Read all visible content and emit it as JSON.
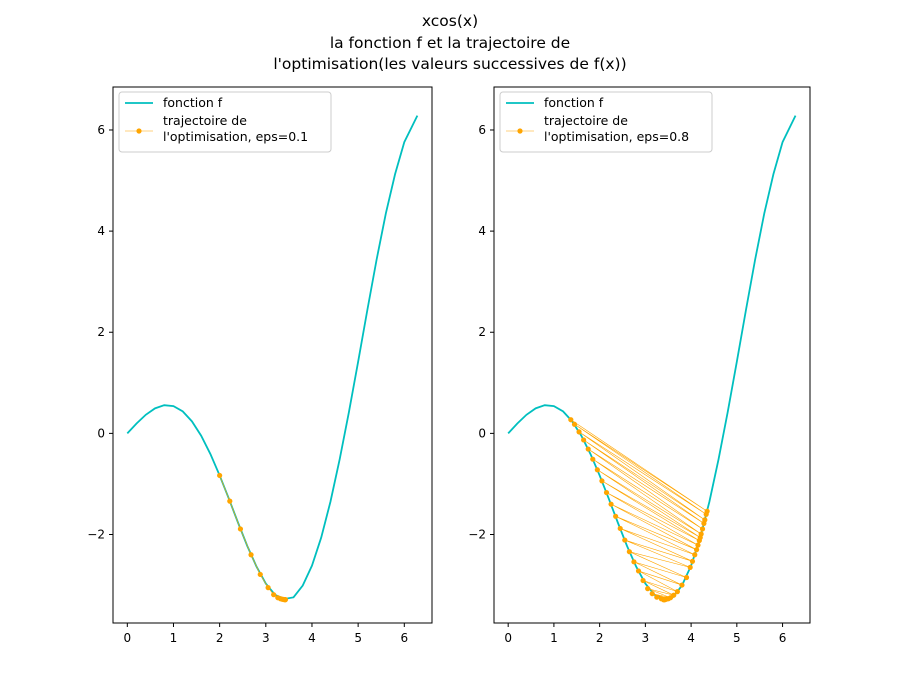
{
  "figure": {
    "title_lines": [
      "xcos(x)",
      "la fonction f et la trajectoire de",
      "l'optimisation(les valeurs successives de f(x))"
    ]
  },
  "colors": {
    "function": "#00bfbf",
    "trajectory": "#ffa500"
  },
  "chart_data": [
    {
      "type": "line",
      "title": "",
      "xlabel": "",
      "ylabel": "",
      "xlim": [
        -0.31,
        6.6
      ],
      "ylim": [
        -3.75,
        6.85
      ],
      "xticks": [
        0,
        1,
        2,
        3,
        4,
        5,
        6
      ],
      "yticks": [
        -2,
        0,
        2,
        4,
        6
      ],
      "ytick_labels": [
        "−2",
        "0",
        "2",
        "4",
        "6"
      ],
      "legend": {
        "position": "upper-left",
        "entries": [
          "fonction f",
          "trajectoire de\nl'optimisation, eps=0.1"
        ]
      },
      "series": [
        {
          "name": "fonction f",
          "x": [
            0,
            0.2,
            0.4,
            0.6,
            0.8,
            1.0,
            1.2,
            1.4,
            1.6,
            1.8,
            2.0,
            2.2,
            2.4,
            2.6,
            2.8,
            3.0,
            3.2,
            3.4,
            3.6,
            3.8,
            4.0,
            4.2,
            4.4,
            4.6,
            4.8,
            5.0,
            5.2,
            5.4,
            5.6,
            5.8,
            6.0,
            6.2832
          ],
          "y": [
            0,
            0.196,
            0.368,
            0.495,
            0.557,
            0.54,
            0.435,
            0.238,
            -0.047,
            -0.409,
            -0.832,
            -1.292,
            -1.77,
            -2.23,
            -2.637,
            -2.97,
            -3.192,
            -3.275,
            -3.243,
            -3.009,
            -2.615,
            -2.061,
            -1.352,
            -0.514,
            0.419,
            1.418,
            2.442,
            3.436,
            4.35,
            5.127,
            5.761,
            6.2832
          ]
        },
        {
          "name": "trajectoire de\nl'optimisation, eps=0.1",
          "x": [
            2.0,
            2.22,
            2.45,
            2.68,
            2.88,
            3.05,
            3.17,
            3.26,
            3.32,
            3.36,
            3.39,
            3.41,
            3.42,
            3.425
          ],
          "y": [
            -0.832,
            -1.34,
            -1.89,
            -2.4,
            -2.79,
            -3.05,
            -3.19,
            -3.25,
            -3.27,
            -3.28,
            -3.285,
            -3.288,
            -3.288,
            -3.288
          ]
        }
      ]
    },
    {
      "type": "line",
      "title": "",
      "xlabel": "",
      "ylabel": "",
      "xlim": [
        -0.31,
        6.6
      ],
      "ylim": [
        -3.75,
        6.85
      ],
      "xticks": [
        0,
        1,
        2,
        3,
        4,
        5,
        6
      ],
      "yticks": [
        -2,
        0,
        2,
        4,
        6
      ],
      "ytick_labels": [
        "−2",
        "0",
        "2",
        "4",
        "6"
      ],
      "legend": {
        "position": "upper-left",
        "entries": [
          "fonction f",
          "trajectoire de\nl'optimisation, eps=0.8"
        ]
      },
      "series": [
        {
          "name": "fonction f",
          "x": [
            0,
            0.2,
            0.4,
            0.6,
            0.8,
            1.0,
            1.2,
            1.4,
            1.6,
            1.8,
            2.0,
            2.2,
            2.4,
            2.6,
            2.8,
            3.0,
            3.2,
            3.4,
            3.6,
            3.8,
            4.0,
            4.2,
            4.4,
            4.6,
            4.8,
            5.0,
            5.2,
            5.4,
            5.6,
            5.8,
            6.0,
            6.2832
          ],
          "y": [
            0,
            0.196,
            0.368,
            0.495,
            0.557,
            0.54,
            0.435,
            0.238,
            -0.047,
            -0.409,
            -0.832,
            -1.292,
            -1.77,
            -2.23,
            -2.637,
            -2.97,
            -3.192,
            -3.275,
            -3.243,
            -3.009,
            -2.615,
            -2.061,
            -1.352,
            -0.514,
            0.419,
            1.418,
            2.442,
            3.436,
            4.35,
            5.127,
            5.761,
            6.2832
          ]
        },
        {
          "name": "trajectoire de\nl'optimisation, eps=0.8",
          "x": [
            1.37,
            4.35,
            1.45,
            4.33,
            1.55,
            4.3,
            1.65,
            4.28,
            1.75,
            4.25,
            1.85,
            4.22,
            1.95,
            4.2,
            2.05,
            4.18,
            2.15,
            4.15,
            2.25,
            4.12,
            2.35,
            4.08,
            2.45,
            4.03,
            2.55,
            3.98,
            2.65,
            3.9,
            2.75,
            3.8,
            2.85,
            3.7,
            2.95,
            3.62,
            3.05,
            3.55,
            3.15,
            3.5,
            3.25,
            3.45,
            3.35,
            3.42,
            3.4
          ],
          "y": [
            0.27,
            -1.54,
            0.18,
            -1.6,
            0.03,
            -1.71,
            -0.13,
            -1.78,
            -0.31,
            -1.89,
            -0.51,
            -1.99,
            -0.72,
            -2.06,
            -0.94,
            -2.12,
            -1.17,
            -2.21,
            -1.4,
            -2.3,
            -1.64,
            -2.4,
            -1.88,
            -2.53,
            -2.11,
            -2.65,
            -2.34,
            -2.85,
            -2.54,
            -3.0,
            -2.72,
            -3.13,
            -2.91,
            -3.2,
            -3.07,
            -3.25,
            -3.17,
            -3.27,
            -3.24,
            -3.28,
            -3.27,
            -3.29,
            -3.29
          ]
        }
      ]
    }
  ]
}
